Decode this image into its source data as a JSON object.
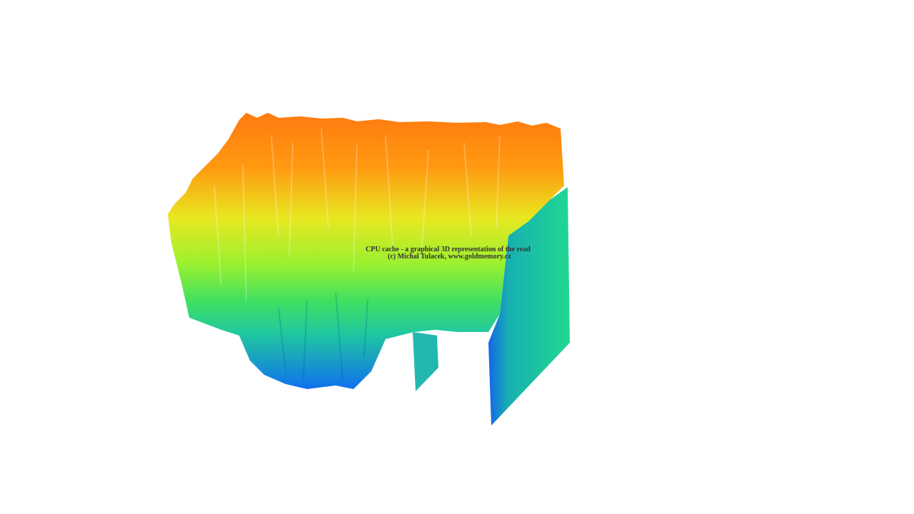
{
  "caption": {
    "line1": "CPU cache - a graphical 3D representation of the read",
    "line2": "(c) Michal Tulacek, www.goldmemory.cz"
  }
}
